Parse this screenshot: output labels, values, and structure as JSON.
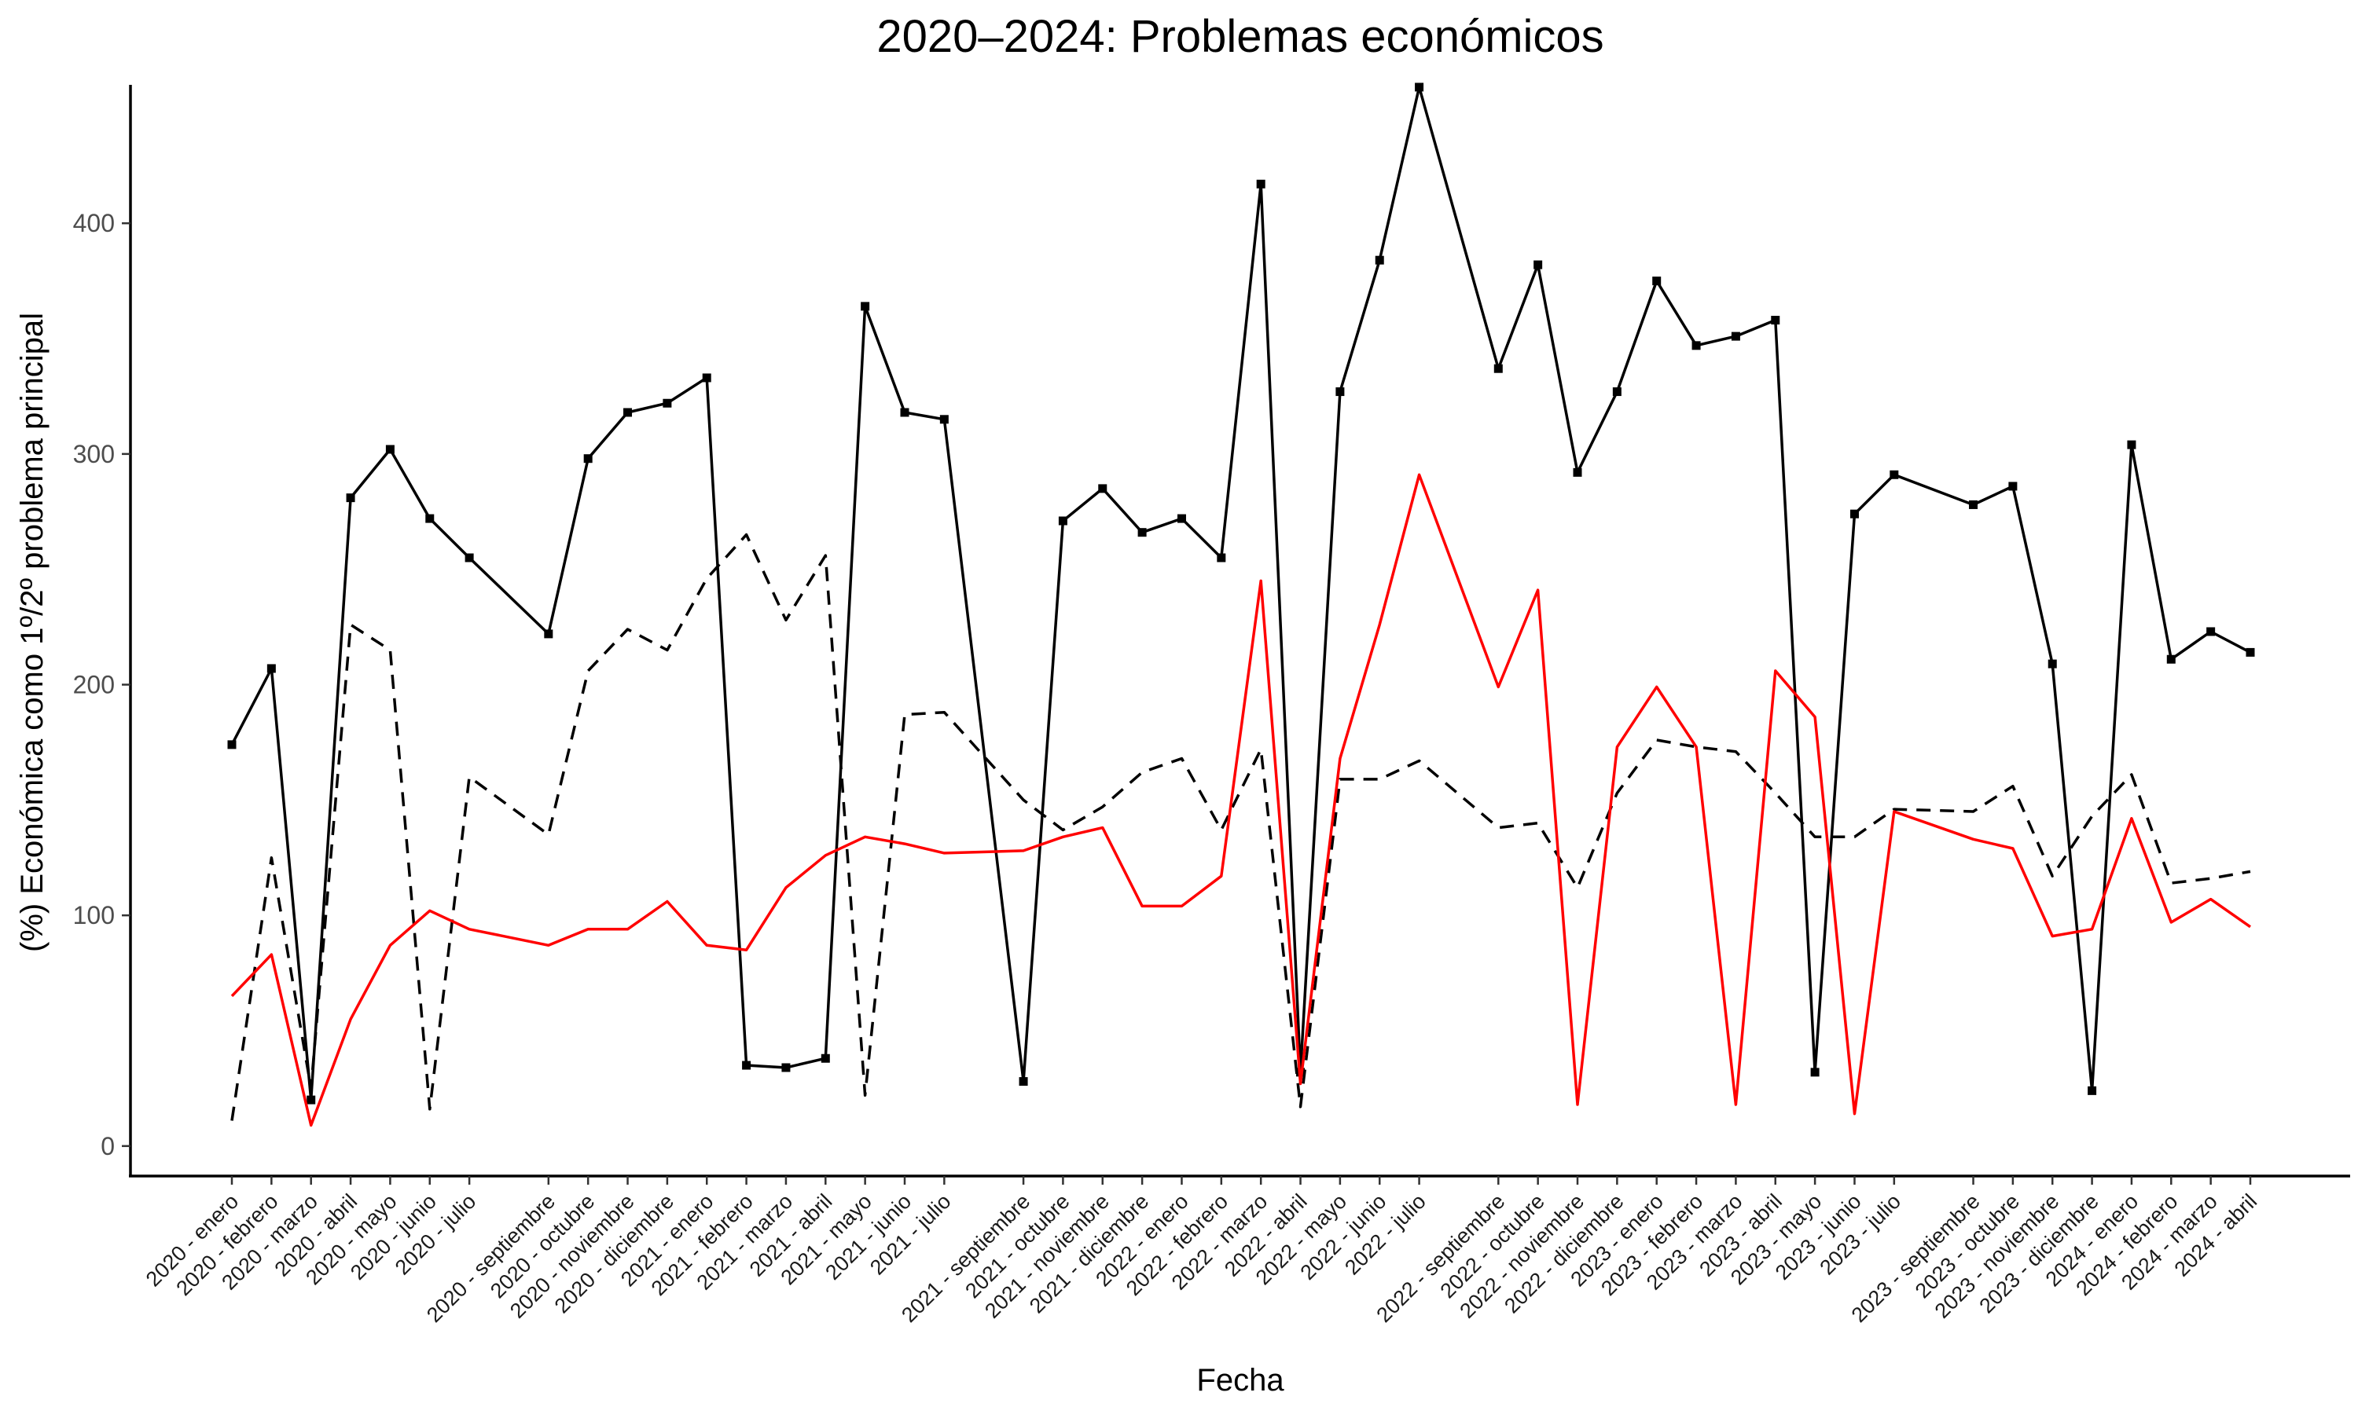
{
  "chart_data": {
    "type": "line",
    "title": "2020–2024: Problemas económicos",
    "xlabel": "Fecha",
    "ylabel": "(%) Económica como 1º/2º problema principal",
    "ylim": [
      -13,
      460
    ],
    "yticks": [
      0,
      100,
      200,
      300,
      400
    ],
    "grid": false,
    "legend": "none",
    "categories": [
      "2020 - enero",
      "2020 - febrero",
      "2020 - marzo",
      "2020 - abril",
      "2020 - mayo",
      "2020 - junio",
      "2020 - julio",
      "2020 - septiembre",
      "2020 - octubre",
      "2020 - noviembre",
      "2020 - diciembre",
      "2021 - enero",
      "2021 - febrero",
      "2021 - marzo",
      "2021 - abril",
      "2021 - mayo",
      "2021 - junio",
      "2021 - julio",
      "2021 - septiembre",
      "2021 - octubre",
      "2021 - noviembre",
      "2021 - diciembre",
      "2022 - enero",
      "2022 - febrero",
      "2022 - marzo",
      "2022 - abril",
      "2022 - mayo",
      "2022 - junio",
      "2022 - julio",
      "2022 - septiembre",
      "2022 - octubre",
      "2022 - noviembre",
      "2022 - diciembre",
      "2023 - enero",
      "2023 - febrero",
      "2023 - marzo",
      "2023 - abril",
      "2023 - mayo",
      "2023 - junio",
      "2023 - julio",
      "2023 - septiembre",
      "2023 - octubre",
      "2023 - noviembre",
      "2023 - diciembre",
      "2024 - enero",
      "2024 - febrero",
      "2024 - marzo",
      "2024 - abril"
    ],
    "x_positions": [
      0,
      1,
      2,
      3,
      4,
      5,
      6,
      8,
      9,
      10,
      11,
      12,
      13,
      14,
      15,
      16,
      17,
      18,
      20,
      21,
      22,
      23,
      24,
      25,
      26,
      27,
      28,
      29,
      30,
      32,
      33,
      34,
      35,
      36,
      37,
      38,
      39,
      40,
      41,
      42,
      44,
      45,
      46,
      47,
      48,
      49,
      50,
      51
    ],
    "series": [
      {
        "style": "solid-points",
        "color": "#000000",
        "values": [
          174,
          207,
          20,
          281,
          302,
          272,
          255,
          222,
          298,
          318,
          322,
          333,
          35,
          34,
          38,
          364,
          318,
          315,
          28,
          271,
          285,
          266,
          272,
          255,
          417,
          32,
          327,
          384,
          459,
          337,
          382,
          292,
          327,
          375,
          347,
          351,
          358,
          32,
          274,
          291,
          278,
          286,
          209,
          24,
          304,
          211,
          223,
          214
        ]
      },
      {
        "style": "dashed",
        "color": "#000000",
        "values": [
          11,
          125,
          25,
          226,
          215,
          16,
          160,
          135,
          206,
          224,
          215,
          246,
          265,
          228,
          256,
          22,
          187,
          188,
          150,
          137,
          147,
          162,
          168,
          137,
          172,
          17,
          159,
          159,
          167,
          138,
          140,
          112,
          153,
          176,
          173,
          171,
          153,
          134,
          134,
          146,
          145,
          156,
          117,
          143,
          161,
          114,
          116,
          119
        ]
      },
      {
        "style": "solid",
        "color": "#ff0000",
        "values": [
          65,
          83,
          9,
          55,
          87,
          102,
          94,
          87,
          94,
          94,
          106,
          87,
          85,
          112,
          126,
          134,
          131,
          127,
          128,
          134,
          138,
          104,
          104,
          117,
          245,
          27,
          168,
          226,
          291,
          199,
          241,
          18,
          173,
          199,
          173,
          18,
          206,
          186,
          14,
          145,
          133,
          129,
          91,
          94,
          142,
          97,
          107,
          95
        ]
      }
    ]
  }
}
